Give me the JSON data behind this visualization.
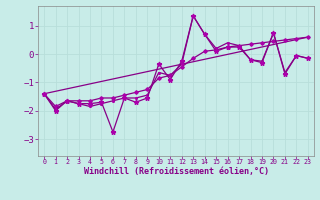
{
  "title": "",
  "xlabel": "Windchill (Refroidissement éolien,°C)",
  "bg_color": "#c8ece8",
  "grid_color": "#aadddd",
  "line_color": "#880088",
  "marker_color": "#aa00aa",
  "xlim": [
    -0.5,
    23.5
  ],
  "ylim": [
    -3.6,
    1.7
  ],
  "yticks": [
    -3,
    -2,
    -1,
    0,
    1
  ],
  "xticks": [
    0,
    1,
    2,
    3,
    4,
    5,
    6,
    7,
    8,
    9,
    10,
    11,
    12,
    13,
    14,
    15,
    16,
    17,
    18,
    19,
    20,
    21,
    22,
    23
  ],
  "line1_x": [
    0,
    1,
    2,
    3,
    4,
    5,
    6,
    7,
    8,
    9,
    10,
    11,
    12,
    13,
    14,
    15,
    16,
    17,
    18,
    19,
    20,
    21,
    22,
    23
  ],
  "line1_y": [
    -1.4,
    -2.0,
    -1.65,
    -1.75,
    -1.75,
    -1.7,
    -2.75,
    -1.55,
    -1.7,
    -1.55,
    -0.35,
    -0.9,
    -0.25,
    1.35,
    0.7,
    0.1,
    0.25,
    0.25,
    -0.2,
    -0.3,
    0.75,
    -0.7,
    -0.05,
    -0.15
  ],
  "line2_x": [
    0,
    1,
    2,
    3,
    4,
    5,
    6,
    7,
    8,
    9,
    10,
    11,
    12,
    13,
    14,
    15,
    16,
    17,
    18,
    19,
    20,
    21,
    22,
    23
  ],
  "line2_y": [
    -1.4,
    -1.95,
    -1.65,
    -1.75,
    -1.85,
    -1.75,
    -1.65,
    -1.55,
    -1.55,
    -1.45,
    -0.65,
    -0.75,
    -0.35,
    1.35,
    0.7,
    0.2,
    0.4,
    0.3,
    -0.2,
    -0.25,
    0.75,
    -0.65,
    -0.05,
    -0.15
  ],
  "line3_x": [
    0,
    1,
    2,
    3,
    4,
    5,
    6,
    7,
    8,
    9,
    10,
    11,
    12,
    13,
    14,
    15,
    16,
    17,
    18,
    19,
    20,
    21,
    22,
    23
  ],
  "line3_y": [
    -1.4,
    -1.85,
    -1.65,
    -1.65,
    -1.65,
    -1.55,
    -1.55,
    -1.45,
    -1.35,
    -1.25,
    -0.85,
    -0.75,
    -0.45,
    -0.15,
    0.1,
    0.15,
    0.25,
    0.3,
    0.35,
    0.4,
    0.45,
    0.5,
    0.55,
    0.6
  ],
  "line4_x": [
    0,
    23
  ],
  "line4_y": [
    -1.4,
    0.6
  ]
}
